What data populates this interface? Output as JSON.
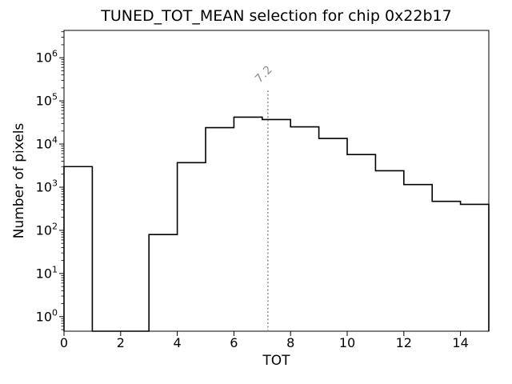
{
  "figure": {
    "background": "#ffffff"
  },
  "chart_data": {
    "type": "bar",
    "subtype": "step-histogram",
    "title": "TUNED_TOT_MEAN selection for chip 0x22b17",
    "xlabel": "TOT",
    "ylabel": "Number of pixels",
    "yscale": "log",
    "grid": false,
    "xlim": [
      0,
      15
    ],
    "ylim": [
      0.46,
      4300000
    ],
    "xticks": [
      0,
      2,
      4,
      6,
      8,
      10,
      12,
      14
    ],
    "ytick_exponents": [
      0,
      1,
      2,
      3,
      4,
      5,
      6
    ],
    "bin_edges": [
      0,
      1,
      2,
      3,
      4,
      5,
      6,
      7,
      8,
      9,
      10,
      11,
      12,
      13,
      14,
      15
    ],
    "counts": [
      3000,
      0,
      0,
      80,
      3700,
      24000,
      42000,
      37000,
      25000,
      13500,
      5700,
      2400,
      1150,
      470,
      400
    ],
    "line_color": "#000000",
    "axis_color": "#000000",
    "vline": {
      "x": 7.2,
      "label": "7.2",
      "color": "#8c8c8c",
      "style": "dotted",
      "ymax_fraction": 0.8
    }
  }
}
